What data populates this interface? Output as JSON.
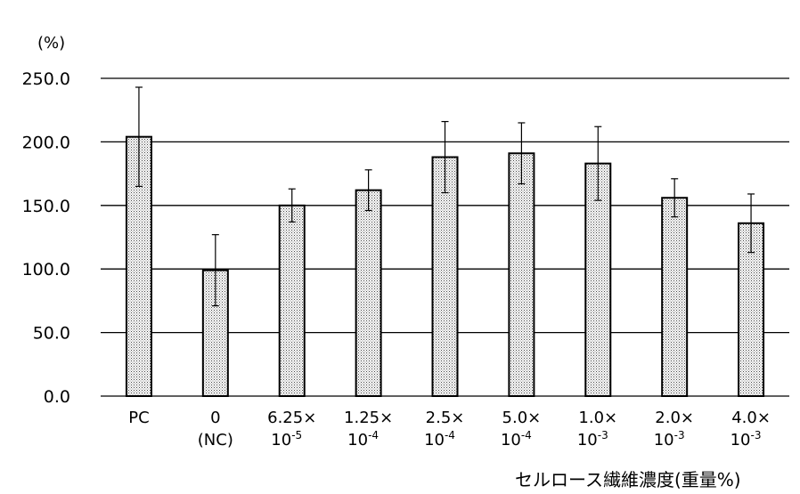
{
  "chart_data": {
    "type": "bar",
    "title": "",
    "ylabel": "(%)",
    "xlabel": "セルロース繊維濃度(重量%)",
    "ylim": [
      0,
      250
    ],
    "yticks": [
      0,
      50,
      100,
      150,
      200,
      250
    ],
    "ytick_labels": [
      "0.0",
      "50.0",
      "100.0",
      "150.0",
      "200.0",
      "250.0"
    ],
    "grid": "horizontal",
    "categories": [
      {
        "line1": "PC",
        "line2": "",
        "exp": ""
      },
      {
        "line1": "0",
        "line2": "(NC)",
        "exp": ""
      },
      {
        "line1": "6.25×",
        "line2": "10",
        "exp": "-5"
      },
      {
        "line1": "1.25×",
        "line2": "10",
        "exp": "-4"
      },
      {
        "line1": "2.5×",
        "line2": "10",
        "exp": "-4"
      },
      {
        "line1": "5.0×",
        "line2": "10",
        "exp": "-4"
      },
      {
        "line1": "1.0×",
        "line2": "10",
        "exp": "-3"
      },
      {
        "line1": "2.0×",
        "line2": "10",
        "exp": "-3"
      },
      {
        "line1": "4.0×",
        "line2": "10",
        "exp": "-3"
      }
    ],
    "values": [
      204,
      99,
      150,
      162,
      188,
      191,
      183,
      156,
      136
    ],
    "error": [
      39,
      28,
      13,
      16,
      28,
      24,
      29,
      15,
      23
    ],
    "bar_color": "#d9d9d9"
  }
}
